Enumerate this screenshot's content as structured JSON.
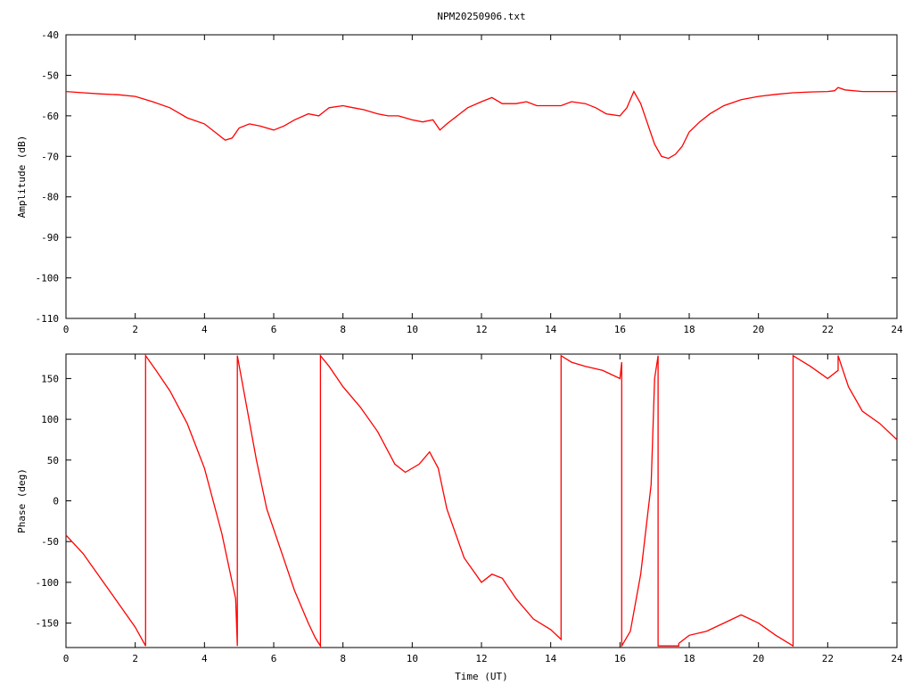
{
  "chart_data": [
    {
      "type": "line",
      "title": "NPM20250906.txt",
      "ylabel": "Amplitude (dB)",
      "xlabel": "",
      "xlim": [
        0,
        24
      ],
      "ylim": [
        -110,
        -40
      ],
      "x_ticks": [
        0,
        2,
        4,
        6,
        8,
        10,
        12,
        14,
        16,
        18,
        20,
        22,
        24
      ],
      "y_ticks": [
        -40,
        -50,
        -60,
        -70,
        -80,
        -90,
        -100,
        -110
      ],
      "y_tick_labels": [
        "-40",
        "-50",
        "-60",
        "-70",
        "-80",
        "-90",
        "-100",
        "-110"
      ],
      "grid": false,
      "legend": "none",
      "color": "#ff0000",
      "series": [
        {
          "x": [
            0,
            0.5,
            1,
            1.5,
            2,
            2.5,
            3,
            3.5,
            4,
            4.3,
            4.6,
            4.8,
            5.0,
            5.3,
            5.6,
            6.0,
            6.3,
            6.6,
            7.0,
            7.3,
            7.6,
            8.0,
            8.3,
            8.6,
            9.0,
            9.3,
            9.6,
            10.0,
            10.3,
            10.6,
            10.8,
            11.0,
            11.3,
            11.6,
            12.0,
            12.3,
            12.6,
            13.0,
            13.3,
            13.6,
            14.0,
            14.3,
            14.6,
            15.0,
            15.3,
            15.6,
            16.0,
            16.2,
            16.4,
            16.6,
            16.8,
            17.0,
            17.2,
            17.4,
            17.6,
            17.8,
            18.0,
            18.3,
            18.6,
            19.0,
            19.5,
            20.0,
            20.5,
            21.0,
            21.5,
            22.0,
            22.2,
            22.3,
            22.5,
            23.0,
            23.5,
            24.0
          ],
          "y": [
            -54,
            -54.3,
            -54.6,
            -54.8,
            -55.2,
            -56.5,
            -58,
            -60.5,
            -62,
            -64,
            -66,
            -65.5,
            -63,
            -62,
            -62.5,
            -63.5,
            -62.5,
            -61,
            -59.5,
            -60,
            -58,
            -57.5,
            -58,
            -58.5,
            -59.5,
            -60,
            -60,
            -61,
            -61.5,
            -61,
            -63.5,
            -62,
            -60,
            -58,
            -56.5,
            -55.5,
            -57,
            -57,
            -56.5,
            -57.5,
            -57.5,
            -57.5,
            -56.5,
            -57,
            -58,
            -59.5,
            -60,
            -58,
            -54,
            -57,
            -62,
            -67,
            -70,
            -70.5,
            -69.5,
            -67.5,
            -64,
            -61.5,
            -59.5,
            -57.5,
            -56,
            -55.2,
            -54.7,
            -54.3,
            -54.1,
            -54,
            -53.8,
            -53,
            -53.6,
            -54,
            -54,
            -54
          ]
        }
      ]
    },
    {
      "type": "line",
      "title": "",
      "ylabel": "Phase (deg)",
      "xlabel": "Time (UT)",
      "xlim": [
        0,
        24
      ],
      "ylim": [
        -180,
        180
      ],
      "x_ticks": [
        0,
        2,
        4,
        6,
        8,
        10,
        12,
        14,
        16,
        18,
        20,
        22,
        24
      ],
      "y_ticks": [
        150,
        100,
        50,
        0,
        -50,
        -100,
        -150
      ],
      "y_tick_labels": [
        "150",
        "100",
        "50",
        "0",
        "-50",
        "-100",
        "-150"
      ],
      "grid": false,
      "legend": "none",
      "color": "#ff0000",
      "series": [
        {
          "x": [
            0,
            0.5,
            1,
            1.5,
            2,
            2.3,
            2.3,
            2.6,
            3,
            3.5,
            4,
            4.5,
            4.9,
            4.95,
            4.95,
            5.2,
            5.5,
            5.8,
            6.2,
            6.6,
            7.0,
            7.2,
            7.35,
            7.35,
            7.6,
            8,
            8.5,
            9,
            9.5,
            9.8,
            10.2,
            10.5,
            10.75,
            11,
            11.5,
            12,
            12.3,
            12.6,
            13,
            13.5,
            14,
            14.3,
            14.3,
            14.6,
            15,
            15.5,
            16,
            16.05,
            16.05,
            16.3,
            16.6,
            16.9,
            17.0,
            17.1,
            17.1,
            17.7,
            17.7,
            18.0,
            18.5,
            19.0,
            19.5,
            20.0,
            20.5,
            21.0,
            21.0,
            21.5,
            22.0,
            22.3,
            22.3,
            22.6,
            23.0,
            23.5,
            24.0
          ],
          "y": [
            -42,
            -65,
            -95,
            -125,
            -155,
            -178,
            178,
            160,
            135,
            95,
            40,
            -40,
            -120,
            -178,
            178,
            120,
            50,
            -10,
            -60,
            -110,
            -150,
            -168,
            -178,
            178,
            165,
            140,
            115,
            85,
            45,
            35,
            45,
            60,
            40,
            -10,
            -70,
            -100,
            -90,
            -95,
            -120,
            -145,
            -158,
            -170,
            178,
            170,
            165,
            160,
            150,
            170,
            -178,
            -160,
            -90,
            20,
            150,
            178,
            -178,
            -178,
            -175,
            -165,
            -160,
            -150,
            -140,
            -150,
            -165,
            -178,
            178,
            165,
            150,
            160,
            178,
            140,
            110,
            95,
            75
          ]
        }
      ]
    }
  ]
}
